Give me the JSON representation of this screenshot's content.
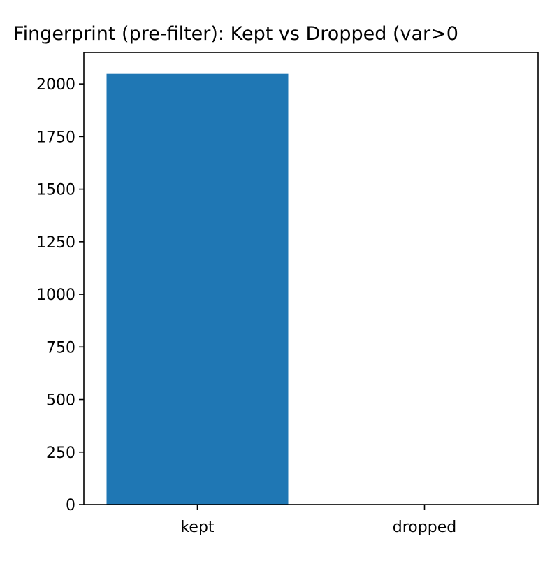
{
  "chart_data": {
    "type": "bar",
    "title": "Fingerprint (pre-filter): Kept vs Dropped (var>0",
    "categories": [
      "kept",
      "dropped"
    ],
    "values": [
      2048,
      0
    ],
    "ylim": [
      0,
      2150
    ],
    "yticks": [
      0,
      250,
      500,
      750,
      1000,
      1250,
      1500,
      1750,
      2000
    ],
    "bar_color": "#1f77b4",
    "grid": false,
    "legend": "none",
    "xlabel": "",
    "ylabel": ""
  }
}
